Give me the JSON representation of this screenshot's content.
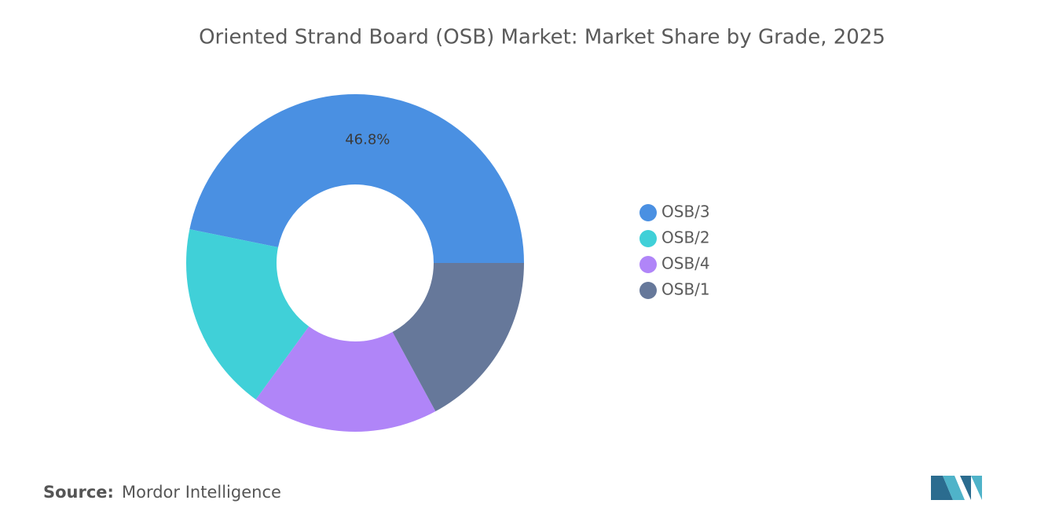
{
  "chart_data": {
    "type": "donut",
    "title": "Oriented Strand Board (OSB) Market: Market Share by Grade, 2025",
    "categories": [
      "OSB/3",
      "OSB/2",
      "OSB/4",
      "OSB/1"
    ],
    "values": [
      46.8,
      18.2,
      17.9,
      17.1
    ],
    "value_labels": [
      "46.8%",
      null,
      null,
      null
    ],
    "colors": [
      "#4a90e2",
      "#40d0d8",
      "#b085f8",
      "#66789a"
    ],
    "source_label": "Source:",
    "source": "Mordor Intelligence"
  }
}
